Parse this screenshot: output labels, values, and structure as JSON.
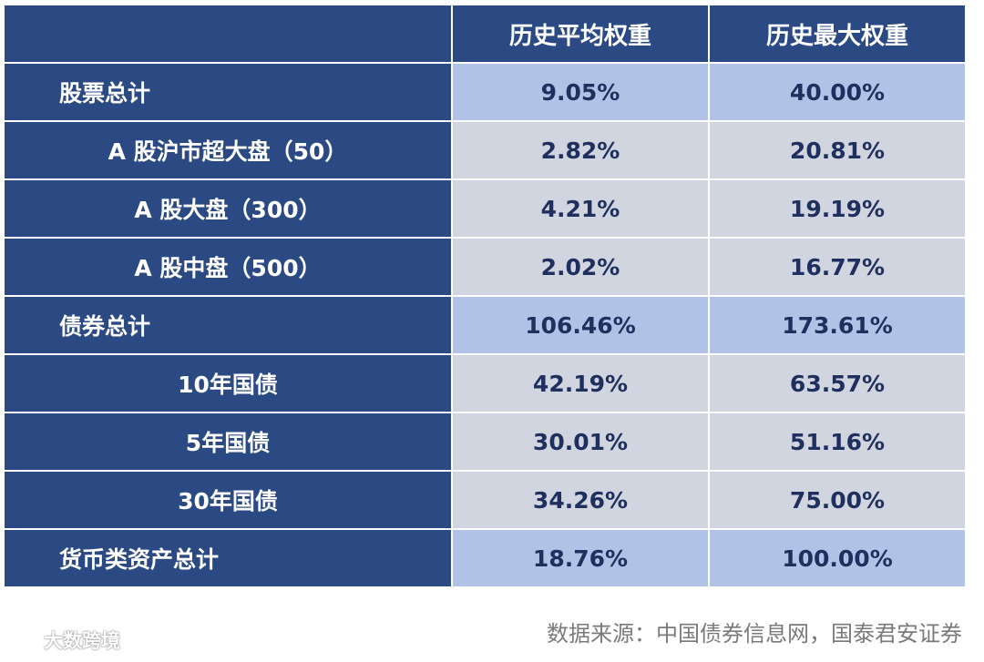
{
  "header": {
    "col_avg": "历史平均权重",
    "col_max": "历史最大权重"
  },
  "rows": [
    {
      "label": "股票总计",
      "avg": "9.05%",
      "max": "40.00%",
      "kind": "total"
    },
    {
      "label": "A 股沪市超大盘（50）",
      "avg": "2.82%",
      "max": "20.81%",
      "kind": "sub"
    },
    {
      "label": "A 股大盘（300）",
      "avg": "4.21%",
      "max": "19.19%",
      "kind": "sub"
    },
    {
      "label": "A 股中盘（500）",
      "avg": "2.02%",
      "max": "16.77%",
      "kind": "sub"
    },
    {
      "label": "债券总计",
      "avg": "106.46%",
      "max": "173.61%",
      "kind": "total"
    },
    {
      "label": "10年国债",
      "avg": "42.19%",
      "max": "63.57%",
      "kind": "sub"
    },
    {
      "label": "5年国债",
      "avg": "30.01%",
      "max": "51.16%",
      "kind": "sub"
    },
    {
      "label": "30年国债",
      "avg": "34.26%",
      "max": "75.00%",
      "kind": "sub"
    },
    {
      "label": "货币类资产总计",
      "avg": "18.76%",
      "max": "100.00%",
      "kind": "total"
    }
  ],
  "source": "数据来源：中国债券信息网，国泰君安证券",
  "watermark": {
    "text": "大数跨境",
    "icon": "brand-logo-icon"
  },
  "colors": {
    "header_bg": "#2b4a84",
    "total_value_bg": "#b0c3e6",
    "sub_value_bg": "#d1d5e0",
    "value_text": "#1f2f5e"
  }
}
